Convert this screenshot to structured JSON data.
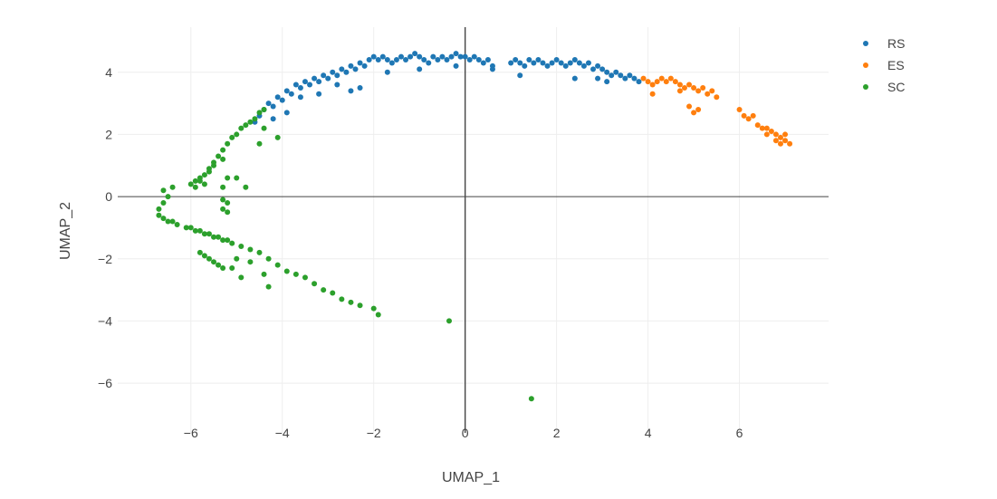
{
  "chart_data": {
    "type": "scatter",
    "xlabel": "UMAP_1",
    "ylabel": "UMAP_2",
    "xlim": [
      -7.6,
      7.95
    ],
    "ylim": [
      -7.6,
      5.45
    ],
    "xticks": [
      -6,
      -4,
      -2,
      0,
      2,
      4,
      6
    ],
    "yticks": [
      -6,
      -4,
      -2,
      0,
      2,
      4
    ],
    "tick_labels_x": [
      "−6",
      "−4",
      "−2",
      "0",
      "2",
      "4",
      "6"
    ],
    "tick_labels_y": [
      "−6",
      "−4",
      "−2",
      "0",
      "2",
      "4"
    ],
    "grid": true,
    "zero_lines": true,
    "legend": "top-right",
    "series": [
      {
        "name": "RS",
        "color": "#1f77b4",
        "points": [
          [
            -4.6,
            2.4
          ],
          [
            -4.5,
            2.6
          ],
          [
            -4.4,
            2.8
          ],
          [
            -4.3,
            3.0
          ],
          [
            -4.2,
            2.9
          ],
          [
            -4.1,
            3.2
          ],
          [
            -4.0,
            3.1
          ],
          [
            -3.9,
            3.4
          ],
          [
            -3.8,
            3.3
          ],
          [
            -3.7,
            3.6
          ],
          [
            -3.6,
            3.5
          ],
          [
            -3.5,
            3.7
          ],
          [
            -3.4,
            3.6
          ],
          [
            -3.3,
            3.8
          ],
          [
            -3.2,
            3.7
          ],
          [
            -3.1,
            3.9
          ],
          [
            -3.0,
            3.8
          ],
          [
            -2.9,
            4.0
          ],
          [
            -2.8,
            3.9
          ],
          [
            -2.7,
            4.1
          ],
          [
            -2.6,
            4.0
          ],
          [
            -2.5,
            4.2
          ],
          [
            -2.4,
            4.1
          ],
          [
            -2.3,
            4.3
          ],
          [
            -2.2,
            4.2
          ],
          [
            -2.1,
            4.4
          ],
          [
            -2.0,
            4.5
          ],
          [
            -1.9,
            4.4
          ],
          [
            -1.8,
            4.5
          ],
          [
            -1.7,
            4.4
          ],
          [
            -1.6,
            4.3
          ],
          [
            -1.5,
            4.4
          ],
          [
            -1.4,
            4.5
          ],
          [
            -1.3,
            4.4
          ],
          [
            -1.2,
            4.5
          ],
          [
            -1.1,
            4.6
          ],
          [
            -1.0,
            4.5
          ],
          [
            -0.9,
            4.4
          ],
          [
            -0.8,
            4.3
          ],
          [
            -0.7,
            4.5
          ],
          [
            -0.6,
            4.4
          ],
          [
            -0.5,
            4.5
          ],
          [
            -0.4,
            4.4
          ],
          [
            -0.3,
            4.5
          ],
          [
            -0.2,
            4.6
          ],
          [
            -0.1,
            4.5
          ],
          [
            0.0,
            4.5
          ],
          [
            0.1,
            4.4
          ],
          [
            0.2,
            4.5
          ],
          [
            0.3,
            4.4
          ],
          [
            0.4,
            4.3
          ],
          [
            0.5,
            4.4
          ],
          [
            0.6,
            4.2
          ],
          [
            1.0,
            4.3
          ],
          [
            1.1,
            4.4
          ],
          [
            1.2,
            4.3
          ],
          [
            1.3,
            4.2
          ],
          [
            1.4,
            4.4
          ],
          [
            1.5,
            4.3
          ],
          [
            1.6,
            4.4
          ],
          [
            1.7,
            4.3
          ],
          [
            1.8,
            4.2
          ],
          [
            1.9,
            4.3
          ],
          [
            2.0,
            4.4
          ],
          [
            2.1,
            4.3
          ],
          [
            2.2,
            4.2
          ],
          [
            2.3,
            4.3
          ],
          [
            2.4,
            4.4
          ],
          [
            2.5,
            4.3
          ],
          [
            2.6,
            4.2
          ],
          [
            2.7,
            4.3
          ],
          [
            2.8,
            4.1
          ],
          [
            2.9,
            4.2
          ],
          [
            3.0,
            4.1
          ],
          [
            3.1,
            4.0
          ],
          [
            3.2,
            3.9
          ],
          [
            3.3,
            4.0
          ],
          [
            3.4,
            3.9
          ],
          [
            3.5,
            3.8
          ],
          [
            3.6,
            3.9
          ],
          [
            3.7,
            3.8
          ],
          [
            3.8,
            3.7
          ],
          [
            -4.2,
            2.5
          ],
          [
            -3.9,
            2.7
          ],
          [
            -3.6,
            3.2
          ],
          [
            -3.2,
            3.3
          ],
          [
            -2.8,
            3.6
          ],
          [
            -2.3,
            3.5
          ],
          [
            -1.0,
            4.1
          ],
          [
            -0.2,
            4.2
          ],
          [
            0.6,
            4.1
          ],
          [
            1.2,
            3.9
          ],
          [
            2.4,
            3.8
          ],
          [
            2.9,
            3.8
          ],
          [
            3.1,
            3.7
          ],
          [
            -2.5,
            3.4
          ],
          [
            -1.7,
            4.0
          ]
        ]
      },
      {
        "name": "ES",
        "color": "#ff7f0e",
        "points": [
          [
            3.9,
            3.8
          ],
          [
            4.0,
            3.7
          ],
          [
            4.1,
            3.6
          ],
          [
            4.2,
            3.7
          ],
          [
            4.3,
            3.8
          ],
          [
            4.4,
            3.7
          ],
          [
            4.5,
            3.8
          ],
          [
            4.6,
            3.7
          ],
          [
            4.7,
            3.6
          ],
          [
            4.8,
            3.5
          ],
          [
            4.9,
            3.6
          ],
          [
            5.0,
            3.5
          ],
          [
            5.1,
            3.4
          ],
          [
            5.2,
            3.5
          ],
          [
            5.3,
            3.3
          ],
          [
            5.4,
            3.4
          ],
          [
            5.5,
            3.2
          ],
          [
            4.1,
            3.3
          ],
          [
            4.7,
            3.4
          ],
          [
            5.0,
            2.7
          ],
          [
            4.9,
            2.9
          ],
          [
            5.1,
            2.8
          ],
          [
            6.0,
            2.8
          ],
          [
            6.1,
            2.6
          ],
          [
            6.2,
            2.5
          ],
          [
            6.3,
            2.6
          ],
          [
            6.4,
            2.3
          ],
          [
            6.5,
            2.2
          ],
          [
            6.6,
            2.2
          ],
          [
            6.7,
            2.1
          ],
          [
            6.8,
            2.0
          ],
          [
            6.9,
            1.9
          ],
          [
            7.0,
            1.8
          ],
          [
            7.1,
            1.7
          ],
          [
            7.0,
            2.0
          ],
          [
            6.9,
            1.7
          ],
          [
            6.6,
            2.0
          ],
          [
            6.8,
            1.8
          ]
        ]
      },
      {
        "name": "SC",
        "color": "#2ca02c",
        "points": [
          [
            -6.7,
            -0.4
          ],
          [
            -6.6,
            -0.2
          ],
          [
            -6.5,
            0.0
          ],
          [
            -6.6,
            0.2
          ],
          [
            -6.4,
            0.3
          ],
          [
            -6.7,
            -0.6
          ],
          [
            -6.6,
            -0.7
          ],
          [
            -6.5,
            -0.8
          ],
          [
            -6.4,
            -0.8
          ],
          [
            -6.3,
            -0.9
          ],
          [
            -6.1,
            -1.0
          ],
          [
            -6.0,
            -1.0
          ],
          [
            -5.9,
            -1.1
          ],
          [
            -5.8,
            -1.1
          ],
          [
            -5.7,
            -1.2
          ],
          [
            -5.6,
            -1.2
          ],
          [
            -5.5,
            -1.3
          ],
          [
            -5.4,
            -1.3
          ],
          [
            -5.3,
            -1.4
          ],
          [
            -5.2,
            -1.4
          ],
          [
            -5.1,
            -1.5
          ],
          [
            -4.9,
            -1.6
          ],
          [
            -4.7,
            -1.7
          ],
          [
            -4.5,
            -1.8
          ],
          [
            -4.3,
            -2.0
          ],
          [
            -4.1,
            -2.2
          ],
          [
            -3.9,
            -2.4
          ],
          [
            -3.7,
            -2.5
          ],
          [
            -3.5,
            -2.6
          ],
          [
            -3.3,
            -2.8
          ],
          [
            -3.1,
            -3.0
          ],
          [
            -2.9,
            -3.1
          ],
          [
            -2.7,
            -3.3
          ],
          [
            -2.5,
            -3.4
          ],
          [
            -2.3,
            -3.5
          ],
          [
            -2.0,
            -3.6
          ],
          [
            -1.9,
            -3.8
          ],
          [
            -0.35,
            -4.0
          ],
          [
            1.45,
            -6.5
          ],
          [
            -5.8,
            -1.8
          ],
          [
            -5.7,
            -1.9
          ],
          [
            -5.6,
            -2.0
          ],
          [
            -5.5,
            -2.1
          ],
          [
            -5.4,
            -2.2
          ],
          [
            -5.3,
            -2.3
          ],
          [
            -5.1,
            -2.3
          ],
          [
            -4.9,
            -2.6
          ],
          [
            -4.3,
            -2.9
          ],
          [
            -5.9,
            0.5
          ],
          [
            -5.8,
            0.6
          ],
          [
            -5.7,
            0.7
          ],
          [
            -5.6,
            0.9
          ],
          [
            -5.5,
            1.1
          ],
          [
            -5.4,
            1.3
          ],
          [
            -5.3,
            1.5
          ],
          [
            -5.2,
            1.7
          ],
          [
            -5.1,
            1.9
          ],
          [
            -5.0,
            2.0
          ],
          [
            -4.9,
            2.2
          ],
          [
            -4.8,
            2.3
          ],
          [
            -4.7,
            2.4
          ],
          [
            -4.6,
            2.5
          ],
          [
            -4.5,
            2.7
          ],
          [
            -4.4,
            2.8
          ],
          [
            -6.0,
            0.4
          ],
          [
            -5.9,
            0.3
          ],
          [
            -5.8,
            0.5
          ],
          [
            -5.7,
            0.4
          ],
          [
            -5.6,
            0.8
          ],
          [
            -5.5,
            1.0
          ],
          [
            -5.3,
            1.2
          ],
          [
            -5.2,
            0.6
          ],
          [
            -5.0,
            0.6
          ],
          [
            -4.8,
            0.3
          ],
          [
            -5.3,
            -0.1
          ],
          [
            -5.2,
            -0.2
          ],
          [
            -5.3,
            -0.4
          ],
          [
            -5.2,
            -0.5
          ],
          [
            -5.3,
            0.3
          ],
          [
            -4.4,
            2.2
          ],
          [
            -4.1,
            1.9
          ],
          [
            -4.5,
            1.7
          ],
          [
            -4.4,
            -2.5
          ],
          [
            -5.0,
            -2.0
          ],
          [
            -4.7,
            -2.1
          ]
        ]
      }
    ]
  }
}
